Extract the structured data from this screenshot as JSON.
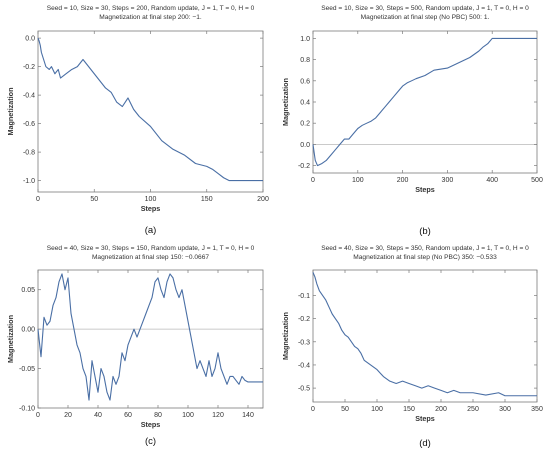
{
  "chart_data": [
    {
      "id": "a",
      "type": "line",
      "title": "Seed = 10, Size = 30, Steps = 200, Random update, J = 1, T = 0, H = 0",
      "subtitle": "Magnetization at final step 200: −1.",
      "caption": "(a)",
      "xlabel": "Steps",
      "ylabel": "Magnetization",
      "xlim": [
        0,
        200
      ],
      "ylim": [
        -1.08,
        0.05
      ],
      "xticks": [
        0,
        50,
        100,
        150,
        200
      ],
      "xtick_labels": [
        "0",
        "50",
        "100",
        "150",
        "200"
      ],
      "yticks": [
        0,
        -0.2,
        -0.4,
        -0.6,
        -0.8,
        -1.0
      ],
      "ytick_labels": [
        "0.0",
        "-0.2",
        "-0.4",
        "-0.6",
        "-0.8",
        "-1.0"
      ],
      "zero_line": false,
      "series": [
        {
          "color": "#4a6fa5",
          "x": [
            0,
            1,
            2,
            3,
            5,
            7,
            10,
            12,
            15,
            18,
            20,
            25,
            30,
            35,
            40,
            45,
            50,
            55,
            60,
            65,
            70,
            75,
            80,
            85,
            90,
            100,
            110,
            120,
            130,
            140,
            150,
            155,
            160,
            165,
            170,
            175,
            180,
            190,
            200
          ],
          "y": [
            0,
            -0.02,
            -0.05,
            -0.1,
            -0.15,
            -0.2,
            -0.22,
            -0.2,
            -0.25,
            -0.22,
            -0.28,
            -0.25,
            -0.22,
            -0.2,
            -0.15,
            -0.2,
            -0.25,
            -0.3,
            -0.35,
            -0.38,
            -0.45,
            -0.48,
            -0.42,
            -0.5,
            -0.55,
            -0.62,
            -0.72,
            -0.78,
            -0.82,
            -0.88,
            -0.9,
            -0.92,
            -0.95,
            -0.98,
            -1.0,
            -1.0,
            -1.0,
            -1.0,
            -1.0
          ]
        }
      ]
    },
    {
      "id": "b",
      "type": "line",
      "title": "Seed = 10, Size = 30, Steps = 500, Random update, J = 1, T = 0, H = 0",
      "subtitle": "Magnetization at final step (No PBC) 500: 1.",
      "caption": "(b)",
      "xlabel": "Steps",
      "ylabel": "Magnetization",
      "xlim": [
        0,
        500
      ],
      "ylim": [
        -0.27,
        1.07
      ],
      "xticks": [
        0,
        100,
        200,
        300,
        400,
        500
      ],
      "xtick_labels": [
        "0",
        "100",
        "200",
        "300",
        "400",
        "500"
      ],
      "yticks": [
        -0.2,
        0,
        0.2,
        0.4,
        0.6,
        0.8,
        1.0
      ],
      "ytick_labels": [
        "-0.2",
        "0.0",
        "0.2",
        "0.4",
        "0.6",
        "0.8",
        "1.0"
      ],
      "zero_line": true,
      "series": [
        {
          "color": "#4a6fa5",
          "x": [
            0,
            5,
            10,
            20,
            30,
            40,
            50,
            60,
            70,
            80,
            90,
            100,
            110,
            120,
            130,
            140,
            150,
            160,
            170,
            180,
            190,
            200,
            210,
            220,
            230,
            250,
            270,
            300,
            330,
            350,
            370,
            380,
            390,
            400,
            420,
            450,
            500
          ],
          "y": [
            0,
            -0.15,
            -0.2,
            -0.18,
            -0.15,
            -0.1,
            -0.05,
            0.0,
            0.05,
            0.05,
            0.1,
            0.15,
            0.18,
            0.2,
            0.22,
            0.25,
            0.3,
            0.35,
            0.4,
            0.45,
            0.5,
            0.55,
            0.58,
            0.6,
            0.62,
            0.65,
            0.7,
            0.72,
            0.78,
            0.82,
            0.88,
            0.92,
            0.95,
            1.0,
            1.0,
            1.0,
            1.0
          ]
        }
      ]
    },
    {
      "id": "c",
      "type": "line",
      "title": "Seed = 40, Size = 30, Steps = 150, Random update, J = 1, T = 0, H = 0",
      "subtitle": "Magnetization at final step 150: −0.0667",
      "caption": "(c)",
      "xlabel": "Steps",
      "ylabel": "Magnetization",
      "xlim": [
        0,
        150
      ],
      "ylim": [
        -0.1,
        0.075
      ],
      "xticks": [
        0,
        20,
        40,
        60,
        80,
        100,
        120,
        140
      ],
      "xtick_labels": [
        "0",
        "20",
        "40",
        "60",
        "80",
        "100",
        "120",
        "140"
      ],
      "yticks": [
        0.05,
        0,
        -0.05,
        -0.1
      ],
      "ytick_labels": [
        "0.05",
        "0.00",
        "-0.05",
        "-0.10"
      ],
      "zero_line": true,
      "series": [
        {
          "color": "#4a6fa5",
          "x": [
            0,
            2,
            4,
            6,
            8,
            10,
            12,
            14,
            16,
            18,
            20,
            22,
            24,
            26,
            28,
            30,
            32,
            34,
            36,
            38,
            40,
            42,
            44,
            46,
            48,
            50,
            52,
            54,
            56,
            58,
            60,
            62,
            64,
            66,
            68,
            70,
            72,
            74,
            76,
            78,
            80,
            82,
            84,
            86,
            88,
            90,
            92,
            94,
            96,
            98,
            100,
            102,
            104,
            106,
            108,
            110,
            112,
            114,
            116,
            118,
            120,
            122,
            124,
            126,
            128,
            130,
            132,
            134,
            136,
            138,
            140,
            145,
            150
          ],
          "y": [
            0,
            -0.035,
            0.015,
            0.005,
            0.01,
            0.03,
            0.04,
            0.06,
            0.07,
            0.05,
            0.065,
            0.02,
            0.0,
            -0.02,
            -0.03,
            -0.05,
            -0.06,
            -0.09,
            -0.04,
            -0.06,
            -0.08,
            -0.05,
            -0.06,
            -0.08,
            -0.09,
            -0.06,
            -0.07,
            -0.06,
            -0.03,
            -0.04,
            -0.02,
            -0.01,
            0.0,
            -0.01,
            0.0,
            0.01,
            0.02,
            0.03,
            0.04,
            0.06,
            0.065,
            0.05,
            0.04,
            0.06,
            0.07,
            0.065,
            0.05,
            0.04,
            0.05,
            0.03,
            0.01,
            -0.01,
            -0.03,
            -0.05,
            -0.04,
            -0.05,
            -0.06,
            -0.04,
            -0.06,
            -0.05,
            -0.03,
            -0.05,
            -0.06,
            -0.07,
            -0.06,
            -0.06,
            -0.065,
            -0.07,
            -0.06,
            -0.065,
            -0.067,
            -0.067,
            -0.067
          ]
        }
      ]
    },
    {
      "id": "d",
      "type": "line",
      "title": "Seed = 40, Size = 30, Steps = 350, Random update, J = 1, T = 0, H = 0",
      "subtitle": "Magnetization at final step (No PBC) 350: −0.533",
      "caption": "(d)",
      "xlabel": "Steps",
      "ylabel": "Magnetization",
      "xlim": [
        0,
        350
      ],
      "ylim": [
        -0.56,
        0.01
      ],
      "xticks": [
        0,
        50,
        100,
        150,
        200,
        250,
        300,
        350
      ],
      "xtick_labels": [
        "0",
        "50",
        "100",
        "150",
        "200",
        "250",
        "300",
        "350"
      ],
      "yticks": [
        -0.1,
        -0.2,
        -0.3,
        -0.4,
        -0.5
      ],
      "ytick_labels": [
        "-0.1",
        "-0.2",
        "-0.3",
        "-0.4",
        "-0.5"
      ],
      "zero_line": false,
      "series": [
        {
          "color": "#4a6fa5",
          "x": [
            0,
            3,
            6,
            10,
            15,
            20,
            25,
            30,
            35,
            40,
            45,
            50,
            55,
            60,
            65,
            70,
            75,
            80,
            90,
            100,
            110,
            120,
            130,
            140,
            150,
            160,
            170,
            180,
            190,
            200,
            210,
            220,
            230,
            250,
            270,
            290,
            300,
            320,
            350
          ],
          "y": [
            0,
            -0.02,
            -0.05,
            -0.08,
            -0.1,
            -0.12,
            -0.15,
            -0.18,
            -0.2,
            -0.22,
            -0.25,
            -0.27,
            -0.28,
            -0.3,
            -0.32,
            -0.33,
            -0.35,
            -0.38,
            -0.4,
            -0.42,
            -0.45,
            -0.47,
            -0.48,
            -0.47,
            -0.48,
            -0.49,
            -0.5,
            -0.49,
            -0.5,
            -0.51,
            -0.52,
            -0.51,
            -0.52,
            -0.52,
            -0.53,
            -0.52,
            -0.533,
            -0.533,
            -0.533
          ]
        }
      ]
    }
  ]
}
